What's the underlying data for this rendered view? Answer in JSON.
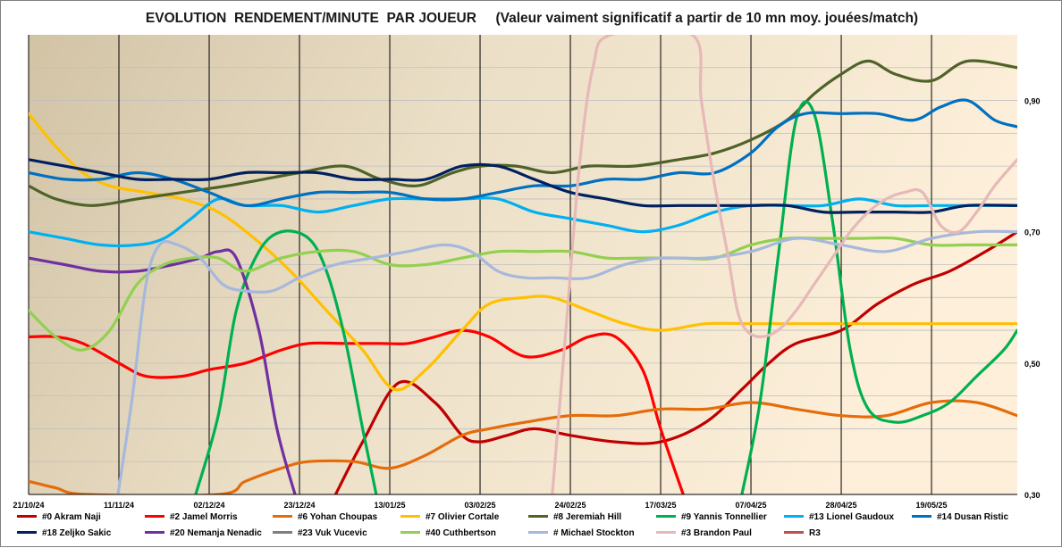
{
  "chart_data": {
    "type": "line",
    "title": "EVOLUTION  RENDEMENT/MINUTE  PAR JOUEUR     (Valeur vaiment significatif a partir de 10 mn moy. jouées/match)",
    "x_tick_labels": [
      "21/10/24",
      "11/11/24",
      "02/12/24",
      "23/12/24",
      "13/01/25",
      "03/02/25",
      "24/02/25",
      "17/03/25",
      "07/04/25",
      "28/04/25",
      "19/05/25"
    ],
    "x_tick_positions": [
      0,
      1,
      2,
      3,
      4,
      5,
      6,
      7,
      8,
      9,
      10
    ],
    "xlim": [
      0,
      10.95
    ],
    "ylim": [
      0.3,
      1.0
    ],
    "y_ticks": [
      0.3,
      0.5,
      0.7,
      0.9
    ],
    "y_tick_labels": [
      "0,30",
      "0,50",
      "0,70",
      "0,90"
    ],
    "y_axis_side": "right",
    "grid": true,
    "legend_position": "bottom",
    "series": [
      {
        "name": "#0 Akram Naji",
        "color": "#c00000",
        "x": [
          3.4,
          3.7,
          4.1,
          4.5,
          4.8,
          5.0,
          5.3,
          5.6,
          6.0,
          6.5,
          7.0,
          7.5,
          7.9,
          8.2,
          8.5,
          9.0,
          9.4,
          9.8,
          10.2,
          10.6,
          10.95
        ],
        "y": [
          0.3,
          0.38,
          0.47,
          0.44,
          0.39,
          0.38,
          0.39,
          0.4,
          0.39,
          0.38,
          0.38,
          0.41,
          0.46,
          0.5,
          0.53,
          0.55,
          0.59,
          0.62,
          0.64,
          0.67,
          0.7
        ]
      },
      {
        "name": "#2 Jamel Morris",
        "color": "#ff0000",
        "x": [
          0,
          0.3,
          0.6,
          1.0,
          1.3,
          1.7,
          2.0,
          2.4,
          2.8,
          3.1,
          3.5,
          3.9,
          4.2,
          4.5,
          4.8,
          5.1,
          5.5,
          5.9,
          6.2,
          6.5,
          6.8,
          7.0,
          7.25
        ],
        "y": [
          0.54,
          0.54,
          0.53,
          0.5,
          0.48,
          0.48,
          0.49,
          0.5,
          0.52,
          0.53,
          0.53,
          0.53,
          0.53,
          0.54,
          0.55,
          0.54,
          0.51,
          0.52,
          0.54,
          0.54,
          0.49,
          0.4,
          0.3
        ]
      },
      {
        "name": "#6 Yohan Choupas",
        "color": "#e46c0a",
        "x": [
          0,
          0.3,
          0.65,
          2.1,
          2.4,
          2.8,
          3.1,
          3.6,
          4.0,
          4.4,
          4.8,
          5.1,
          5.5,
          6.0,
          6.5,
          7.0,
          7.5,
          8.0,
          8.5,
          9.0,
          9.5,
          10.0,
          10.5,
          10.95
        ],
        "y": [
          0.32,
          0.31,
          0.3,
          0.3,
          0.32,
          0.34,
          0.35,
          0.35,
          0.34,
          0.36,
          0.39,
          0.4,
          0.41,
          0.42,
          0.42,
          0.43,
          0.43,
          0.44,
          0.43,
          0.42,
          0.42,
          0.44,
          0.44,
          0.42
        ]
      },
      {
        "name": "#7 Olivier Cortale",
        "color": "#ffc000",
        "x": [
          0,
          0.3,
          0.6,
          0.9,
          1.3,
          1.7,
          2.1,
          2.5,
          2.9,
          3.3,
          3.7,
          4.05,
          4.4,
          4.8,
          5.1,
          5.5,
          5.8,
          6.2,
          6.6,
          7.0,
          7.5,
          8.0,
          8.5,
          9.0,
          9.5,
          10.0,
          10.5,
          10.95
        ],
        "y": [
          0.88,
          0.83,
          0.79,
          0.77,
          0.76,
          0.75,
          0.73,
          0.69,
          0.64,
          0.58,
          0.52,
          0.46,
          0.49,
          0.55,
          0.59,
          0.6,
          0.6,
          0.58,
          0.56,
          0.55,
          0.56,
          0.56,
          0.56,
          0.56,
          0.56,
          0.56,
          0.56,
          0.56
        ]
      },
      {
        "name": "#8 Jeremiah Hill",
        "color": "#4f6228",
        "x": [
          0,
          0.3,
          0.7,
          1.2,
          1.7,
          2.2,
          2.6,
          3.0,
          3.5,
          3.9,
          4.3,
          4.7,
          5.0,
          5.4,
          5.8,
          6.2,
          6.7,
          7.2,
          7.6,
          8.0,
          8.4,
          8.7,
          9.0,
          9.3,
          9.6,
          10.0,
          10.4,
          10.95
        ],
        "y": [
          0.77,
          0.75,
          0.74,
          0.75,
          0.76,
          0.77,
          0.78,
          0.79,
          0.8,
          0.78,
          0.77,
          0.79,
          0.8,
          0.8,
          0.79,
          0.8,
          0.8,
          0.81,
          0.82,
          0.84,
          0.87,
          0.91,
          0.94,
          0.96,
          0.94,
          0.93,
          0.96,
          0.95
        ]
      },
      {
        "name": "#9 Yannis Tonnellier",
        "color": "#00b050",
        "x": [
          1.85,
          2.1,
          2.3,
          2.55,
          2.8,
          3.1,
          3.3,
          3.5,
          3.7,
          3.85,
          7.9,
          8.1,
          8.3,
          8.5,
          8.7,
          8.9,
          9.1,
          9.3,
          9.6,
          9.9,
          10.2,
          10.5,
          10.8,
          10.95
        ],
        "y": [
          0.3,
          0.42,
          0.58,
          0.67,
          0.7,
          0.69,
          0.64,
          0.54,
          0.4,
          0.3,
          0.3,
          0.44,
          0.66,
          0.87,
          0.88,
          0.72,
          0.52,
          0.43,
          0.41,
          0.42,
          0.44,
          0.48,
          0.52,
          0.55
        ]
      },
      {
        "name": "#13 Lionel Gaudoux",
        "color": "#00b0f0",
        "x": [
          0,
          0.4,
          0.8,
          1.2,
          1.5,
          1.8,
          2.1,
          2.4,
          2.8,
          3.2,
          3.6,
          4.0,
          4.4,
          4.8,
          5.2,
          5.6,
          6.0,
          6.4,
          6.8,
          7.2,
          7.6,
          8.0,
          8.4,
          8.8,
          9.2,
          9.6,
          10.0,
          10.5,
          10.95
        ],
        "y": [
          0.7,
          0.69,
          0.68,
          0.68,
          0.69,
          0.72,
          0.75,
          0.74,
          0.74,
          0.73,
          0.74,
          0.75,
          0.75,
          0.75,
          0.75,
          0.73,
          0.72,
          0.71,
          0.7,
          0.71,
          0.73,
          0.74,
          0.74,
          0.74,
          0.75,
          0.74,
          0.74,
          0.74,
          0.74
        ]
      },
      {
        "name": "#14 Dusan Ristic",
        "color": "#0070c0",
        "x": [
          0,
          0.4,
          0.8,
          1.2,
          1.6,
          2.0,
          2.4,
          2.8,
          3.2,
          3.6,
          4.0,
          4.4,
          4.8,
          5.2,
          5.6,
          6.0,
          6.4,
          6.8,
          7.2,
          7.6,
          8.0,
          8.3,
          8.6,
          9.0,
          9.4,
          9.8,
          10.1,
          10.4,
          10.7,
          10.95
        ],
        "y": [
          0.79,
          0.78,
          0.78,
          0.79,
          0.78,
          0.76,
          0.74,
          0.75,
          0.76,
          0.76,
          0.76,
          0.75,
          0.75,
          0.76,
          0.77,
          0.77,
          0.78,
          0.78,
          0.79,
          0.79,
          0.82,
          0.86,
          0.88,
          0.88,
          0.88,
          0.87,
          0.89,
          0.9,
          0.87,
          0.86
        ]
      },
      {
        "name": "#18 Zeljko Sakic",
        "color": "#002060",
        "x": [
          0,
          0.4,
          0.8,
          1.2,
          1.6,
          2.0,
          2.4,
          2.8,
          3.2,
          3.6,
          4.0,
          4.4,
          4.8,
          5.2,
          5.6,
          6.0,
          6.4,
          6.8,
          7.2,
          7.6,
          8.0,
          8.4,
          8.8,
          9.2,
          9.6,
          10.0,
          10.4,
          10.95
        ],
        "y": [
          0.81,
          0.8,
          0.79,
          0.78,
          0.78,
          0.78,
          0.79,
          0.79,
          0.79,
          0.78,
          0.78,
          0.78,
          0.8,
          0.8,
          0.78,
          0.76,
          0.75,
          0.74,
          0.74,
          0.74,
          0.74,
          0.74,
          0.73,
          0.73,
          0.73,
          0.73,
          0.74,
          0.74
        ]
      },
      {
        "name": "#20 Nemanja Nenadic",
        "color": "#7030a0",
        "x": [
          0,
          0.4,
          0.8,
          1.2,
          1.6,
          1.9,
          2.1,
          2.3,
          2.55,
          2.75,
          2.95
        ],
        "y": [
          0.66,
          0.65,
          0.64,
          0.64,
          0.65,
          0.66,
          0.67,
          0.66,
          0.55,
          0.4,
          0.3
        ]
      },
      {
        "name": "#23 Vuk Vucevic",
        "color": "#7f7f7f",
        "x": [],
        "y": []
      },
      {
        "name": "#40 Cuthbertson",
        "color": "#92d050",
        "x": [
          0,
          0.3,
          0.6,
          0.9,
          1.2,
          1.5,
          1.8,
          2.1,
          2.4,
          2.8,
          3.2,
          3.6,
          4.0,
          4.4,
          4.8,
          5.2,
          5.6,
          6.0,
          6.4,
          6.8,
          7.2,
          7.6,
          8.0,
          8.4,
          8.8,
          9.2,
          9.6,
          10.0,
          10.4,
          10.95
        ],
        "y": [
          0.58,
          0.54,
          0.52,
          0.55,
          0.62,
          0.65,
          0.66,
          0.66,
          0.64,
          0.66,
          0.67,
          0.67,
          0.65,
          0.65,
          0.66,
          0.67,
          0.67,
          0.67,
          0.66,
          0.66,
          0.66,
          0.66,
          0.68,
          0.69,
          0.69,
          0.69,
          0.69,
          0.68,
          0.68,
          0.68
        ]
      },
      {
        "name": "#  Michael Stockton",
        "color": "#a6b8dc",
        "x": [
          0.99,
          1.15,
          1.3,
          1.45,
          1.65,
          1.9,
          2.15,
          2.4,
          2.7,
          3.0,
          3.4,
          3.8,
          4.2,
          4.6,
          4.9,
          5.2,
          5.5,
          5.8,
          6.2,
          6.6,
          7.0,
          7.5,
          8.0,
          8.5,
          9.0,
          9.5,
          10.0,
          10.5,
          10.95
        ],
        "y": [
          0.3,
          0.45,
          0.62,
          0.68,
          0.68,
          0.66,
          0.62,
          0.61,
          0.61,
          0.63,
          0.65,
          0.66,
          0.67,
          0.68,
          0.67,
          0.64,
          0.63,
          0.63,
          0.63,
          0.65,
          0.66,
          0.66,
          0.67,
          0.69,
          0.68,
          0.67,
          0.69,
          0.7,
          0.7
        ]
      },
      {
        "name": "#3 Brandon Paul",
        "color": "#e6b9b8",
        "x": [
          5.8,
          5.95,
          6.1,
          6.25,
          6.45,
          7.35,
          7.45,
          7.6,
          7.75,
          7.85,
          7.95,
          8.1,
          8.3,
          8.5,
          8.7,
          8.9,
          9.1,
          9.3,
          9.5,
          9.7,
          9.9,
          10.1,
          10.3,
          10.5,
          10.7,
          10.95
        ],
        "y": [
          0.3,
          0.55,
          0.8,
          0.95,
          1.0,
          1.0,
          0.9,
          0.77,
          0.66,
          0.58,
          0.55,
          0.54,
          0.55,
          0.58,
          0.62,
          0.66,
          0.7,
          0.73,
          0.75,
          0.76,
          0.76,
          0.71,
          0.7,
          0.73,
          0.77,
          0.81
        ]
      },
      {
        "name": "R3",
        "color": "#c0504d",
        "x": [],
        "y": []
      }
    ]
  }
}
